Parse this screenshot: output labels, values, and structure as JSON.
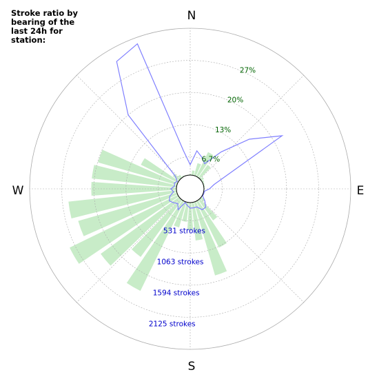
{
  "title": "Stroke ratio by bearing of the last 24h for station:",
  "compass": {
    "n": "N",
    "e": "E",
    "s": "S",
    "w": "W"
  },
  "colors": {
    "bars": "#c8ecc8",
    "line": "#7f7fff",
    "pct_text": "#006400",
    "count_text": "#0000cc",
    "grid": "#a9a9a9"
  },
  "chart_data": {
    "type": "polar",
    "ratio_ring_labels": [
      "6.7%",
      "13%",
      "20%",
      "27%"
    ],
    "count_ring_labels": [
      "531 strokes",
      "1063 strokes",
      "1594 strokes",
      "2125 strokes"
    ],
    "count_rings": [
      531,
      1063,
      1594,
      2125
    ],
    "count_max": 2500,
    "ratio_rings": [
      6.7,
      13.3,
      20,
      26.7
    ],
    "ratio_max": 33.3,
    "bearing_step_deg": 10,
    "stroke_counts": [
      20,
      80,
      220,
      460,
      270,
      55,
      30,
      20,
      15,
      10,
      8,
      10,
      15,
      80,
      430,
      880,
      1300,
      650,
      470,
      330,
      450,
      1700,
      1200,
      1650,
      2050,
      1750,
      1850,
      1450,
      1450,
      1400,
      700,
      130,
      60,
      20,
      10,
      5
    ],
    "stroke_ratio": [
      5,
      8,
      7,
      6,
      10,
      16,
      22,
      8,
      5,
      4,
      3,
      3,
      3,
      4,
      5,
      5,
      4,
      4,
      4,
      3.5,
      3,
      5,
      4,
      4.5,
      5,
      4.5,
      3.5,
      4,
      3.3,
      3.5,
      3.1,
      4,
      20,
      30.5,
      32,
      8
    ]
  }
}
